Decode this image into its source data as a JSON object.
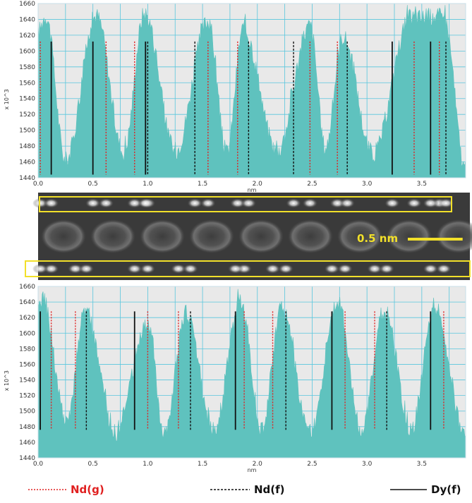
{
  "chart_data": [
    {
      "type": "area",
      "panel": "top",
      "ylabel": "x 10^3",
      "xlabel": "nm",
      "ylim": [
        1440,
        1660
      ],
      "xlim": [
        0.0,
        3.9
      ],
      "yticks": [
        1440,
        1460,
        1480,
        1500,
        1520,
        1540,
        1560,
        1580,
        1600,
        1620,
        1640,
        1660
      ],
      "xticks": [
        "0.0",
        "0.5",
        "1.0",
        "1.5",
        "2.0",
        "2.5",
        "3.0",
        "3.5"
      ],
      "grid": true,
      "fill_color": "#5fc2be",
      "peaks": [
        {
          "x": 0.07,
          "y": 1645
        },
        {
          "x": 0.53,
          "y": 1645
        },
        {
          "x": 0.97,
          "y": 1648
        },
        {
          "x": 1.55,
          "y": 1638
        },
        {
          "x": 1.87,
          "y": 1628
        },
        {
          "x": 2.48,
          "y": 1632
        },
        {
          "x": 2.78,
          "y": 1618
        },
        {
          "x": 3.4,
          "y": 1642
        },
        {
          "x": 3.7,
          "y": 1644
        }
      ],
      "valleys": [
        {
          "x": 0.25,
          "y": 1462
        },
        {
          "x": 0.78,
          "y": 1472
        },
        {
          "x": 1.25,
          "y": 1474
        },
        {
          "x": 1.72,
          "y": 1472
        },
        {
          "x": 2.18,
          "y": 1474
        },
        {
          "x": 2.62,
          "y": 1478
        },
        {
          "x": 3.05,
          "y": 1470
        },
        {
          "x": 3.9,
          "y": 1450
        }
      ],
      "markers": {
        "Nd(g)": [
          0.02,
          0.62,
          0.88,
          1.55,
          1.82,
          2.48,
          2.73,
          3.43,
          3.66
        ],
        "Nd(f)": [
          1.0,
          1.43,
          1.92,
          2.33,
          2.82,
          3.72
        ],
        "Dy(f)": [
          0.12,
          0.5,
          0.98,
          3.23,
          3.58
        ]
      }
    },
    {
      "type": "area",
      "panel": "bottom",
      "ylabel": "x 10^3",
      "xlabel": "nm",
      "ylim": [
        1440,
        1660
      ],
      "xlim": [
        0.0,
        3.9
      ],
      "yticks": [
        1440,
        1460,
        1480,
        1500,
        1520,
        1540,
        1560,
        1580,
        1600,
        1620,
        1640,
        1660
      ],
      "xticks": [
        "0.0",
        "0.5",
        "1.0",
        "1.5",
        "2.0",
        "2.5",
        "3.0",
        "3.5"
      ],
      "grid": true,
      "fill_color": "#5fc2be",
      "peaks": [
        {
          "x": 0.04,
          "y": 1645
        },
        {
          "x": 0.43,
          "y": 1628
        },
        {
          "x": 1.0,
          "y": 1612
        },
        {
          "x": 1.35,
          "y": 1625
        },
        {
          "x": 1.85,
          "y": 1640
        },
        {
          "x": 2.22,
          "y": 1632
        },
        {
          "x": 2.73,
          "y": 1640
        },
        {
          "x": 3.16,
          "y": 1630
        },
        {
          "x": 3.62,
          "y": 1632
        }
      ],
      "valleys": [
        {
          "x": 0.26,
          "y": 1484
        },
        {
          "x": 0.7,
          "y": 1472
        },
        {
          "x": 1.15,
          "y": 1474
        },
        {
          "x": 1.6,
          "y": 1476
        },
        {
          "x": 2.04,
          "y": 1476
        },
        {
          "x": 2.48,
          "y": 1472
        },
        {
          "x": 2.95,
          "y": 1476
        },
        {
          "x": 3.4,
          "y": 1476
        },
        {
          "x": 3.9,
          "y": 1468
        }
      ],
      "markers": {
        "Nd(g)": [
          0.12,
          0.34,
          1.0,
          1.28,
          1.88,
          2.14,
          2.8,
          3.07,
          3.7
        ],
        "Nd(f)": [
          0.44,
          1.39,
          2.26,
          3.18
        ],
        "Dy(f)": [
          0.02,
          0.88,
          1.8,
          2.68,
          3.58
        ]
      }
    }
  ],
  "image": {
    "scale_label": "0.5 nm",
    "scale_nm": 0.5
  },
  "legend": [
    {
      "label": "Nd(g)",
      "style": "dotted",
      "color": "#e02020"
    },
    {
      "label": "Nd(f)",
      "style": "dashed",
      "color": "#111111"
    },
    {
      "label": "Dy(f)",
      "style": "solid",
      "color": "#111111"
    }
  ],
  "colors": {
    "fill": "#5fc2be",
    "plot_bg": "#e9e9e9",
    "grid": "#58c6dd",
    "frame": "#c8dfe8",
    "highlight_box": "#f2e02a",
    "nd_g": "#e02020",
    "marker_dark": "#111111"
  }
}
